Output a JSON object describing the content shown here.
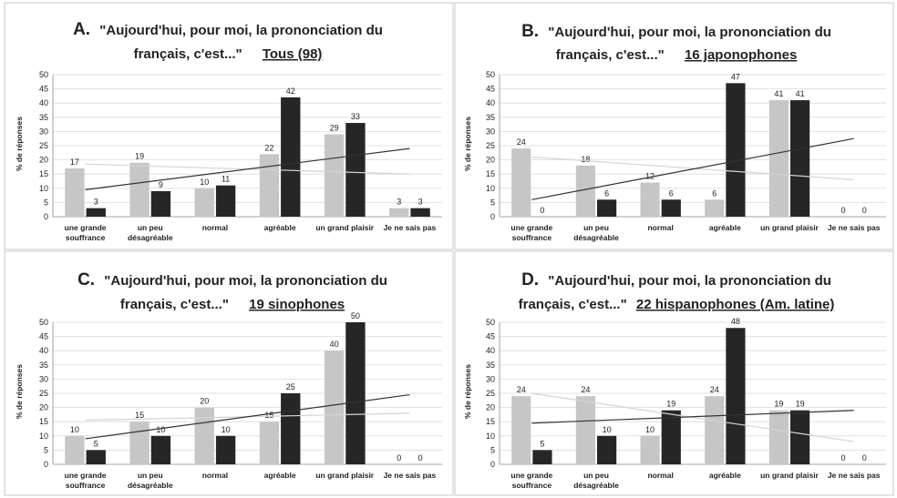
{
  "series_colors": {
    "light": "#c6c6c6",
    "dark": "#262626"
  },
  "chart_data": [
    {
      "type": "bar",
      "letter": "A.",
      "title": "\"Aujourd'hui, pour moi, la prononciation du",
      "title_line2": "français, c'est...\"",
      "group_label": "Tous (98)",
      "ylabel": "% de réponses",
      "ylim": [
        0,
        50
      ],
      "yticks": [
        "0",
        "5",
        "10",
        "15",
        "20",
        "25",
        "30",
        "35",
        "40",
        "45",
        "50"
      ],
      "categories": [
        "une grande souffrance",
        "un peu désagréable",
        "normal",
        "agréable",
        "un grand plaisir",
        "Je ne sais pas"
      ],
      "category_lines": [
        [
          "une grande",
          "souffrance"
        ],
        [
          "un peu",
          "désagréable"
        ],
        [
          "normal"
        ],
        [
          "agréable"
        ],
        [
          "un grand plaisir"
        ],
        [
          "Je ne sais pas"
        ]
      ],
      "series": [
        {
          "values": [
            17,
            19,
            10,
            22,
            29,
            3
          ],
          "labels": [
            "17",
            "19",
            "10",
            "22",
            "29",
            "3"
          ]
        },
        {
          "values": [
            3,
            9,
            11,
            42,
            33,
            3
          ],
          "labels": [
            "3",
            "9",
            "11",
            "42",
            "33",
            "3"
          ]
        }
      ],
      "trend_light": [
        18.5,
        15
      ],
      "trend_dark": [
        9.5,
        24
      ]
    },
    {
      "type": "bar",
      "letter": "B.",
      "title": "\"Aujourd'hui, pour moi, la prononciation du",
      "title_line2": "français, c'est...\"",
      "group_label": "16 japonophones",
      "ylabel": "% de réponses",
      "ylim": [
        0,
        50
      ],
      "yticks": [
        "0",
        "5",
        "10",
        "15",
        "20",
        "25",
        "30",
        "35",
        "40",
        "45",
        "50"
      ],
      "categories": [
        "une grande souffrance",
        "un peu désagréable",
        "normal",
        "agréable",
        "un grand plaisir",
        "Je ne sais pas"
      ],
      "category_lines": [
        [
          "une grande",
          "souffrance"
        ],
        [
          "un peu",
          "désagréable"
        ],
        [
          "normal"
        ],
        [
          "agréable"
        ],
        [
          "un grand plaisir"
        ],
        [
          "Je ne sais pas"
        ]
      ],
      "series": [
        {
          "values": [
            24,
            18,
            12,
            6,
            41,
            0
          ],
          "labels": [
            "24",
            "18",
            "12",
            "6",
            "41",
            "0"
          ]
        },
        {
          "values": [
            0,
            6,
            6,
            47,
            41,
            0
          ],
          "labels": [
            "0",
            "6",
            "6",
            "47",
            "41",
            "0"
          ]
        }
      ],
      "trend_light": [
        21,
        13
      ],
      "trend_dark": [
        6,
        27.5
      ]
    },
    {
      "type": "bar",
      "letter": "C.",
      "title": "\"Aujourd'hui, pour moi, la prononciation du",
      "title_line2": "français, c'est...\"",
      "group_label": "19 sinophones",
      "ylabel": "% de réponses",
      "ylim": [
        0,
        50
      ],
      "yticks": [
        "0",
        "5",
        "10",
        "15",
        "20",
        "25",
        "30",
        "35",
        "40",
        "45",
        "50"
      ],
      "categories": [
        "une grande souffrance",
        "un peu désagréable",
        "normal",
        "agréable",
        "un grand plaisir",
        "Je ne sais pas"
      ],
      "category_lines": [
        [
          "une grande",
          "souffrance"
        ],
        [
          "un peu",
          "désagréable"
        ],
        [
          "normal"
        ],
        [
          "agréable"
        ],
        [
          "un grand plaisir"
        ],
        [
          "Je ne sais pas"
        ]
      ],
      "series": [
        {
          "values": [
            10,
            15,
            20,
            15,
            40,
            0
          ],
          "labels": [
            "10",
            "15",
            "20",
            "15",
            "40",
            "0"
          ]
        },
        {
          "values": [
            5,
            10,
            10,
            25,
            50,
            0
          ],
          "labels": [
            "5",
            "10",
            "10",
            "25",
            "50",
            "0"
          ]
        }
      ],
      "trend_light": [
        15.5,
        18
      ],
      "trend_dark": [
        9,
        24.5
      ]
    },
    {
      "type": "bar",
      "letter": "D.",
      "title": "\"Aujourd'hui, pour moi, la prononciation du",
      "title_line2": "français, c'est...\"",
      "group_label": "22 hispanophones (Am. latine)",
      "ylabel": "% de réponses",
      "ylim": [
        0,
        50
      ],
      "yticks": [
        "0",
        "5",
        "10",
        "15",
        "20",
        "25",
        "30",
        "35",
        "40",
        "45",
        "50"
      ],
      "categories": [
        "une grande souffrance",
        "un peu désagréable",
        "normal",
        "agréable",
        "un grand plaisir",
        "Je ne sais pas"
      ],
      "category_lines": [
        [
          "une grande",
          "souffrance"
        ],
        [
          "un peu",
          "désagréable"
        ],
        [
          "normal"
        ],
        [
          "agréable"
        ],
        [
          "un grand plaisir"
        ],
        [
          "Je ne sais pas"
        ]
      ],
      "series": [
        {
          "values": [
            24,
            24,
            10,
            24,
            19,
            0
          ],
          "labels": [
            "24",
            "24",
            "10",
            "24",
            "19",
            "0"
          ]
        },
        {
          "values": [
            5,
            10,
            19,
            48,
            19,
            0
          ],
          "labels": [
            "5",
            "10",
            "19",
            "48",
            "19",
            "0"
          ]
        }
      ],
      "trend_light": [
        25,
        8
      ],
      "trend_dark": [
        14.5,
        19
      ]
    }
  ]
}
